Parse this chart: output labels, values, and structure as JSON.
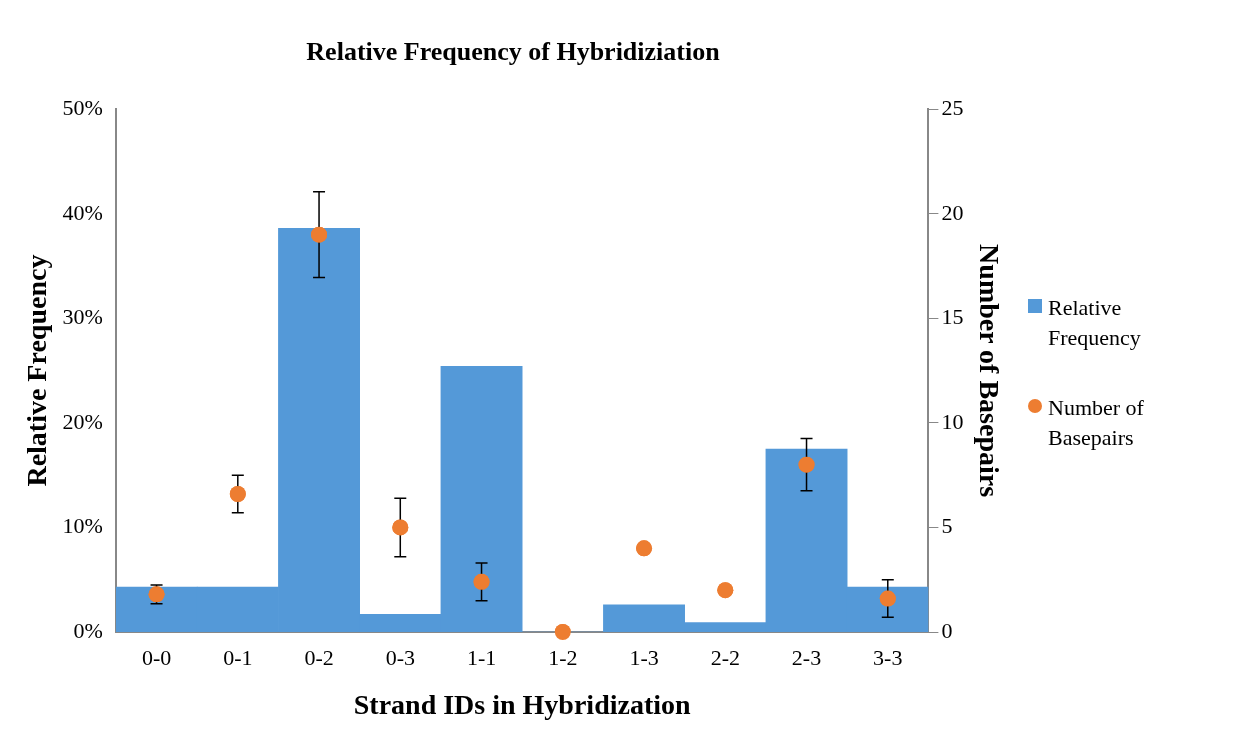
{
  "chart_data": {
    "type": "bar",
    "title": "Relative Frequency of Hybridiziation",
    "xlabel": "Strand IDs in Hybridization",
    "ylabel": "Relative Frequency",
    "y2label": "Number of Basepairs",
    "categories": [
      "0-0",
      "0-1",
      "0-2",
      "0-3",
      "1-1",
      "1-2",
      "1-3",
      "2-2",
      "2-3",
      "3-3"
    ],
    "series": [
      {
        "name": "Relative Frequency",
        "type": "bar",
        "color": "#5499d8",
        "values": [
          4.3,
          4.3,
          38.6,
          1.7,
          25.4,
          0,
          2.6,
          0.9,
          17.5,
          4.3
        ]
      },
      {
        "name": "Number of Basepairs",
        "type": "scatter",
        "axis": "y2",
        "color": "#ed7d31",
        "x": [
          "0-0",
          "0-1",
          "0-2",
          "0-3",
          "1-1",
          "1-2",
          "1-3",
          "2-2",
          "2-3",
          "3-3"
        ],
        "values": [
          1.8,
          6.6,
          19,
          5,
          2.4,
          0,
          4,
          2,
          8,
          1.6
        ],
        "errors": [
          0.45,
          0.9,
          2.05,
          1.4,
          0.9,
          null,
          null,
          null,
          1.25,
          0.9
        ]
      }
    ],
    "ylim": [
      0,
      50
    ],
    "yticks": [
      {
        "value": 0,
        "label": "0%"
      },
      {
        "value": 10,
        "label": "10%"
      },
      {
        "value": 20,
        "label": "20%"
      },
      {
        "value": 30,
        "label": "30%"
      },
      {
        "value": 40,
        "label": "40%"
      },
      {
        "value": 50,
        "label": "50%"
      }
    ],
    "y2lim": [
      0,
      25
    ],
    "y2ticks": [
      0,
      5,
      10,
      15,
      20,
      25
    ],
    "grid": false,
    "legend": "right",
    "marker": "circle"
  }
}
